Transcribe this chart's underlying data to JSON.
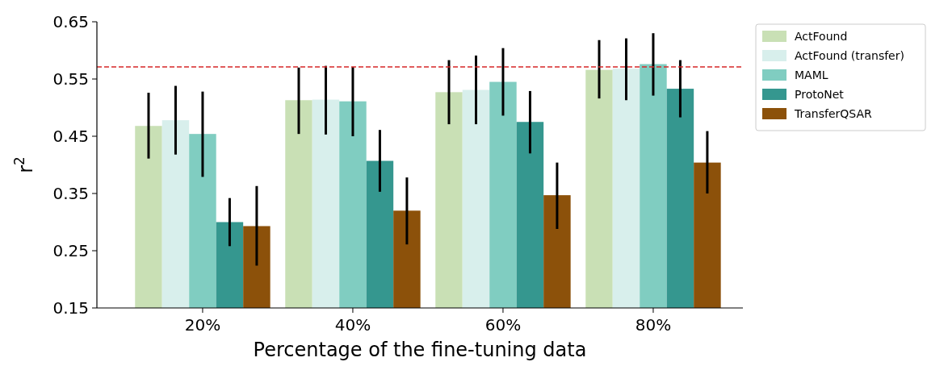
{
  "chart_data": {
    "type": "bar",
    "xlabel": "Percentage of the fine-tuning data",
    "ylabel": "r$^{2}$",
    "categories": [
      "20%",
      "40%",
      "60%",
      "80%"
    ],
    "series": [
      {
        "name": "ActFound",
        "color": "#c9e0b5",
        "values": [
          0.468,
          0.513,
          0.527,
          0.566
        ],
        "errors": [
          [
            0.411,
            0.526
          ],
          [
            0.454,
            0.57
          ],
          [
            0.471,
            0.583
          ],
          [
            0.516,
            0.618
          ]
        ]
      },
      {
        "name": "ActFound (transfer)",
        "color": "#d8efec",
        "values": [
          0.478,
          0.514,
          0.531,
          0.568
        ],
        "errors": [
          [
            0.418,
            0.538
          ],
          [
            0.453,
            0.573
          ],
          [
            0.471,
            0.591
          ],
          [
            0.513,
            0.621
          ]
        ]
      },
      {
        "name": "MAML",
        "color": "#80cdc1",
        "values": [
          0.454,
          0.511,
          0.545,
          0.576
        ],
        "errors": [
          [
            0.379,
            0.528
          ],
          [
            0.45,
            0.571
          ],
          [
            0.486,
            0.604
          ],
          [
            0.521,
            0.63
          ]
        ]
      },
      {
        "name": "ProtoNet",
        "color": "#35978f",
        "values": [
          0.3,
          0.407,
          0.475,
          0.533
        ],
        "errors": [
          [
            0.258,
            0.342
          ],
          [
            0.353,
            0.461
          ],
          [
            0.42,
            0.529
          ],
          [
            0.483,
            0.583
          ]
        ]
      },
      {
        "name": "TransferQSAR",
        "color": "#8c510a",
        "values": [
          0.293,
          0.32,
          0.347,
          0.404
        ],
        "errors": [
          [
            0.224,
            0.363
          ],
          [
            0.261,
            0.378
          ],
          [
            0.288,
            0.404
          ],
          [
            0.35,
            0.459
          ]
        ]
      }
    ],
    "ylim": [
      0.15,
      0.65
    ],
    "yticks": [
      0.15,
      0.25,
      0.35,
      0.45,
      0.55,
      0.65
    ],
    "ref_lines": [
      {
        "axis": "y",
        "value": 0.571,
        "color": "#d62728",
        "line_style": "dashed"
      }
    ],
    "legend": "top right",
    "grid": false
  }
}
